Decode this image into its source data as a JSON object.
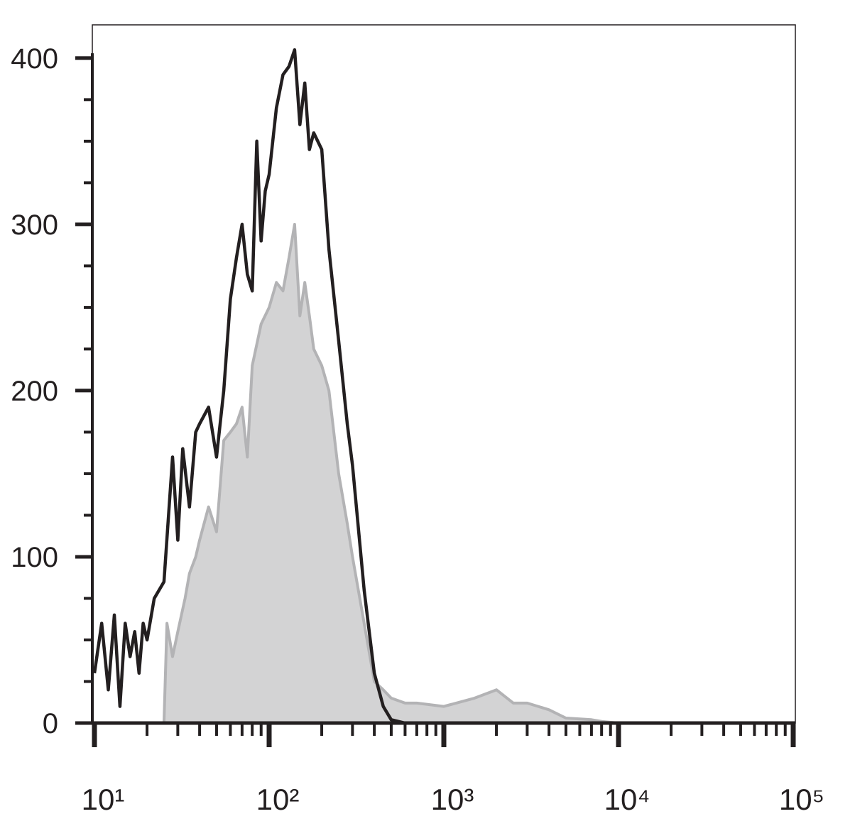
{
  "chart_data": {
    "type": "histogram-line",
    "xlog": true,
    "xlim": [
      10,
      100000
    ],
    "ylim": [
      0,
      420
    ],
    "xticks": [
      {
        "value": 10,
        "label": "10¹"
      },
      {
        "value": 100,
        "label": "10²"
      },
      {
        "value": 1000,
        "label": "10³"
      },
      {
        "value": 10000,
        "label": "10⁴"
      },
      {
        "value": 100000,
        "label": "10⁵"
      }
    ],
    "xminor_ticks": [
      20,
      30,
      40,
      50,
      60,
      70,
      80,
      90,
      200,
      300,
      400,
      500,
      600,
      700,
      800,
      900,
      2000,
      3000,
      4000,
      5000,
      6000,
      7000,
      8000,
      9000,
      20000,
      30000,
      40000,
      50000,
      60000,
      70000,
      80000,
      90000
    ],
    "yticks": [
      0,
      100,
      200,
      300,
      400
    ],
    "yminor_ticks": [
      25,
      50,
      75,
      125,
      150,
      175,
      225,
      250,
      275,
      325,
      350,
      375
    ],
    "series": [
      {
        "color": "#b3b3b5",
        "fill": "#d3d3d4",
        "x": [
          25,
          26,
          28,
          30,
          33,
          35,
          38,
          40,
          45,
          50,
          55,
          60,
          65,
          70,
          75,
          80,
          90,
          100,
          110,
          120,
          130,
          140,
          150,
          160,
          170,
          180,
          200,
          220,
          250,
          280,
          300,
          350,
          400,
          450,
          500,
          600,
          700,
          1000,
          1500,
          2000,
          2500,
          3000,
          4000,
          5000,
          7000,
          8000,
          10000,
          100000
        ],
        "values": [
          0,
          60,
          40,
          55,
          75,
          90,
          100,
          110,
          130,
          115,
          170,
          175,
          180,
          190,
          160,
          215,
          240,
          250,
          265,
          260,
          280,
          300,
          245,
          265,
          245,
          225,
          215,
          200,
          150,
          120,
          100,
          60,
          25,
          20,
          15,
          12,
          12,
          10,
          15,
          20,
          12,
          12,
          8,
          3,
          2,
          1,
          0,
          0
        ]
      },
      {
        "color": "#231f20",
        "x": [
          10,
          11,
          12,
          13,
          14,
          15,
          16,
          17,
          18,
          19,
          20,
          22,
          25,
          28,
          30,
          32,
          35,
          38,
          40,
          45,
          50,
          55,
          60,
          65,
          70,
          75,
          80,
          85,
          90,
          95,
          100,
          110,
          120,
          130,
          140,
          150,
          160,
          170,
          180,
          200,
          220,
          250,
          280,
          300,
          350,
          400,
          450,
          500,
          600,
          1000,
          10000,
          100000
        ],
        "values": [
          30,
          60,
          20,
          65,
          10,
          60,
          40,
          55,
          30,
          60,
          50,
          75,
          85,
          160,
          110,
          165,
          130,
          175,
          180,
          190,
          160,
          200,
          255,
          280,
          300,
          270,
          260,
          350,
          290,
          320,
          330,
          370,
          390,
          395,
          405,
          360,
          385,
          345,
          355,
          345,
          285,
          230,
          180,
          155,
          80,
          30,
          10,
          2,
          0,
          0,
          0,
          0
        ]
      }
    ]
  }
}
